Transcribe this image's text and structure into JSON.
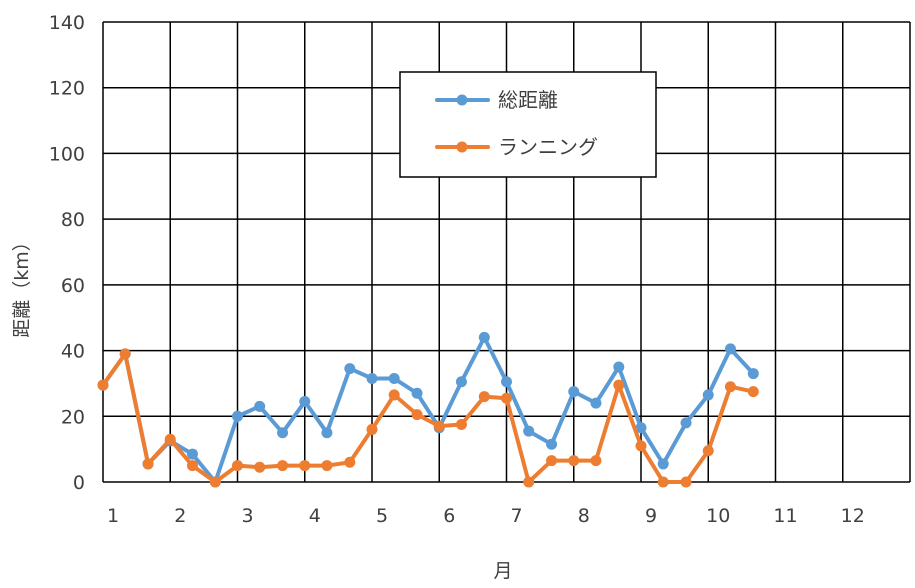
{
  "chart_data": {
    "type": "line",
    "xlabel": "月",
    "ylabel": "距離（km）",
    "ylim": [
      0,
      140
    ],
    "y_ticks": [
      0,
      20,
      40,
      60,
      80,
      100,
      120,
      140
    ],
    "xlim": [
      1,
      13
    ],
    "x_ticks": [
      1,
      2,
      3,
      4,
      5,
      6,
      7,
      8,
      9,
      10,
      11,
      12
    ],
    "x_tick_labels": [
      "1",
      "2",
      "3",
      "4",
      "5",
      "6",
      "7",
      "8",
      "9",
      "10",
      "11",
      "12"
    ],
    "grid": true,
    "legend_position": "top-center",
    "series": [
      {
        "name": "総距離",
        "color": "#5B9BD5",
        "x": [
          1,
          1.33,
          1.67,
          2,
          2.33,
          2.67,
          3,
          3.33,
          3.67,
          4,
          4.33,
          4.67,
          5,
          5.33,
          5.67,
          6,
          6.33,
          6.67,
          7,
          7.33,
          7.67,
          8,
          8.33,
          8.67,
          9,
          9.33,
          9.67,
          10,
          10.33,
          10.67
        ],
        "values": [
          29.5,
          39,
          5.5,
          12.5,
          8.5,
          0,
          20,
          23,
          15,
          24.5,
          15,
          34.5,
          31.5,
          31.5,
          27,
          16.5,
          30.5,
          44,
          30.5,
          15.5,
          11.5,
          27.5,
          24,
          35,
          16.5,
          5.5,
          18,
          26.5,
          40.5,
          33
        ]
      },
      {
        "name": "ランニング",
        "color": "#ED7D31",
        "x": [
          1,
          1.33,
          1.67,
          2,
          2.33,
          2.67,
          3,
          3.33,
          3.67,
          4,
          4.33,
          4.67,
          5,
          5.33,
          5.67,
          6,
          6.33,
          6.67,
          7,
          7.33,
          7.67,
          8,
          8.33,
          8.67,
          9,
          9.33,
          9.67,
          10,
          10.33,
          10.67
        ],
        "values": [
          29.5,
          39,
          5.5,
          13,
          5,
          0,
          5,
          4.5,
          5,
          5,
          5,
          6,
          16,
          26.5,
          20.5,
          17,
          17.5,
          26,
          25.5,
          0,
          6.5,
          6.5,
          6.5,
          29.5,
          11,
          0,
          0,
          9.5,
          29,
          27.5
        ]
      }
    ]
  }
}
